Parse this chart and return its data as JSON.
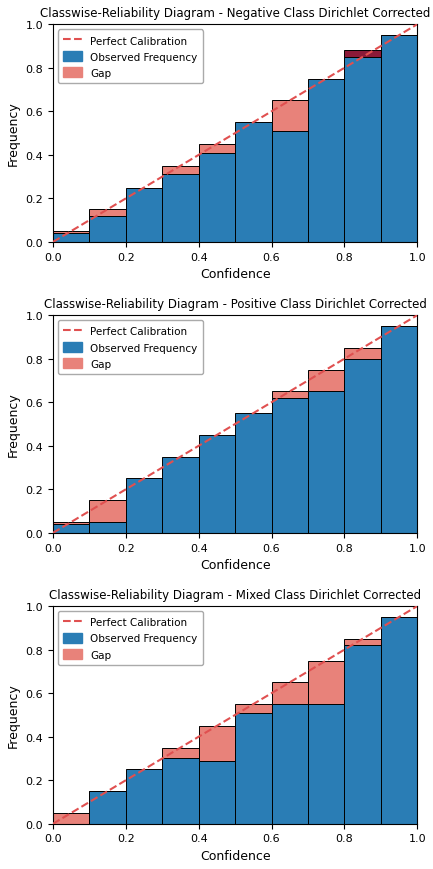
{
  "titles": [
    "Classwise-Reliability Diagram - Negative Class Dirichlet Corrected",
    "Classwise-Reliability Diagram - Positive Class Dirichlet Corrected",
    "Classwise-Reliability Diagram - Mixed Class Dirichlet Corrected"
  ],
  "neg_observed": [
    0.04,
    0.12,
    0.25,
    0.31,
    0.41,
    0.55,
    0.51,
    0.75,
    0.88,
    0.95
  ],
  "pos_observed": [
    0.04,
    0.05,
    0.25,
    0.35,
    0.45,
    0.55,
    0.62,
    0.65,
    0.8,
    0.95
  ],
  "mix_observed": [
    0.0,
    0.15,
    0.25,
    0.3,
    0.29,
    0.51,
    0.55,
    0.55,
    0.82,
    0.95
  ],
  "bin_edges": [
    0.0,
    0.1,
    0.2,
    0.3,
    0.4,
    0.5,
    0.6,
    0.7,
    0.8,
    0.9,
    1.0
  ],
  "blue_color": "#2a7db5",
  "gap_under_color": "#e8827a",
  "gap_over_color": "#8B1A38",
  "diag_color": "#e05050",
  "xlim": [
    0.0,
    1.0
  ],
  "ylim": [
    0.0,
    1.0
  ],
  "xlabel": "Confidence",
  "ylabel": "Frequency",
  "legend_items": [
    "Perfect Calibration",
    "Observed Frequency",
    "Gap"
  ],
  "figsize": [
    4.33,
    8.7
  ],
  "dpi": 100
}
